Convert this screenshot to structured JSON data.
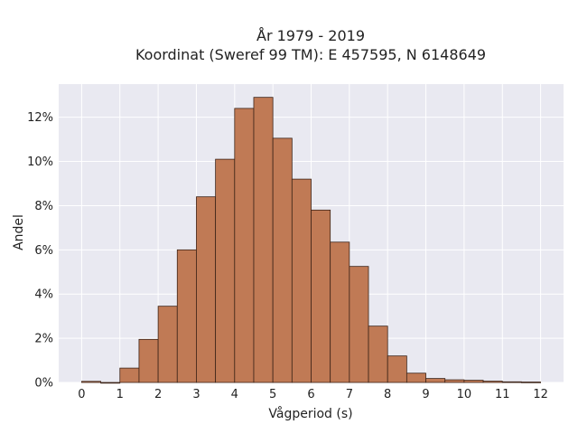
{
  "chart_data": {
    "type": "bar",
    "title": "År 1979 - 2019",
    "subtitle": "Koordinat (Sweref 99 TM): E 457595, N 6148649",
    "xlabel": "Vågperiod (s)",
    "ylabel": "Andel",
    "xlim": [
      -0.6,
      12.6
    ],
    "ylim": [
      0,
      13.5
    ],
    "x_ticks": [
      0,
      1,
      2,
      3,
      4,
      5,
      6,
      7,
      8,
      9,
      10,
      11,
      12
    ],
    "x_tick_labels": [
      "0",
      "1",
      "2",
      "3",
      "4",
      "5",
      "6",
      "7",
      "8",
      "9",
      "10",
      "11",
      "12"
    ],
    "y_ticks": [
      0,
      2,
      4,
      6,
      8,
      10,
      12
    ],
    "y_tick_labels": [
      "0%",
      "2%",
      "4%",
      "6%",
      "8%",
      "10%",
      "12%"
    ],
    "bin_width": 0.5,
    "bins_start": [
      0,
      0.5,
      1,
      1.5,
      2,
      2.5,
      3,
      3.5,
      4,
      4.5,
      5,
      5.5,
      6,
      6.5,
      7,
      7.5,
      8,
      8.5,
      9,
      9.5,
      10,
      10.5,
      11,
      11.5
    ],
    "values": [
      0.05,
      0,
      0.65,
      1.95,
      3.45,
      6.0,
      8.4,
      10.1,
      12.4,
      12.9,
      11.05,
      9.2,
      7.8,
      6.35,
      5.25,
      2.55,
      1.2,
      0.42,
      0.18,
      0.12,
      0.1,
      0.06,
      0.03,
      0.02
    ],
    "grid": true,
    "legend": false,
    "colors": {
      "bar_fill": "#c07a55",
      "bar_edge": "#3d2418",
      "plot_bg": "#e9e9f1",
      "grid": "#ffffff"
    }
  }
}
